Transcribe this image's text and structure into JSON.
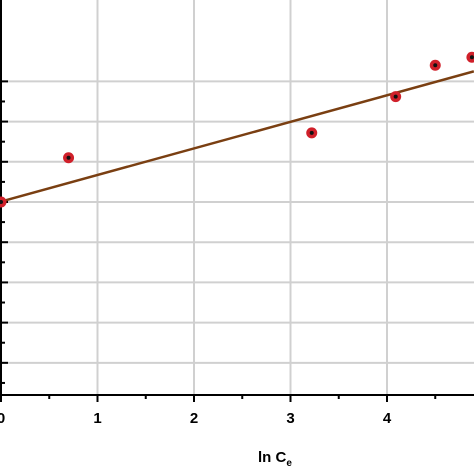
{
  "chart_data": {
    "type": "scatter",
    "title": "",
    "xlabel": "ln C",
    "xlabel_subscript": "e",
    "ylabel": "",
    "x_ticks": [
      "0",
      "1",
      "2",
      "3",
      "4"
    ],
    "xlim": [
      0,
      4.9
    ],
    "ylim": [
      -2.4,
      1.6
    ],
    "grid": true,
    "points": [
      {
        "x": 0.0,
        "y": 0.0
      },
      {
        "x": 0.7,
        "y": 0.55
      },
      {
        "x": 3.22,
        "y": 0.86
      },
      {
        "x": 4.09,
        "y": 1.31
      },
      {
        "x": 4.5,
        "y": 1.7
      },
      {
        "x": 4.88,
        "y": 1.8
      }
    ],
    "fit_line": {
      "slope": 0.3,
      "intercept": 0.08
    },
    "colors": {
      "marker_fill": "#d0202a",
      "marker_center": "#111111",
      "fit_line": "#7a3f12",
      "grid": "#d0d0d0"
    }
  }
}
